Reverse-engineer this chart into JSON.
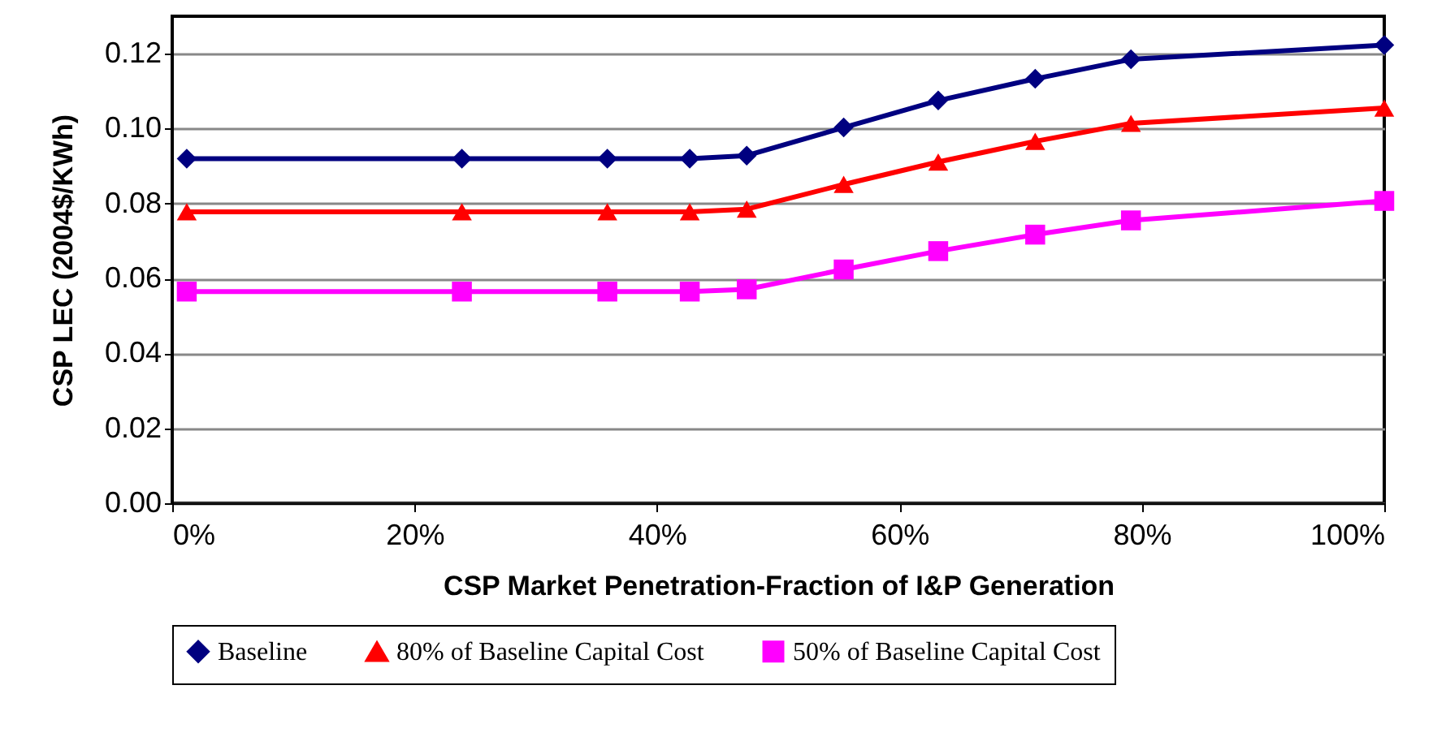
{
  "chart_data": {
    "type": "line",
    "xlabel": "CSP Market Penetration-Fraction of I&P Generation",
    "ylabel": "CSP LEC (2004$/KWh)",
    "x": [
      1.2,
      23.9,
      35.9,
      42.7,
      47.4,
      55.4,
      63.2,
      71.2,
      79.1,
      100
    ],
    "series": [
      {
        "name": "Baseline",
        "color": "#000080",
        "marker": "diamond",
        "values": [
          0.092,
          0.092,
          0.092,
          0.092,
          0.0928,
          0.1003,
          0.1075,
          0.1133,
          0.1185,
          0.1223
        ]
      },
      {
        "name": "80% of Baseline Capital Cost",
        "color": "#ff0000",
        "marker": "triangle",
        "values": [
          0.0778,
          0.0778,
          0.0778,
          0.0778,
          0.0785,
          0.0851,
          0.0911,
          0.0966,
          0.1014,
          0.1055
        ]
      },
      {
        "name": "50% of Baseline Capital Cost",
        "color": "#ff00ff",
        "marker": "square",
        "values": [
          0.0565,
          0.0565,
          0.0565,
          0.0565,
          0.0571,
          0.0624,
          0.0673,
          0.0717,
          0.0755,
          0.0807
        ]
      }
    ],
    "xlim": [
      0,
      100
    ],
    "xticks": [
      {
        "value": 0,
        "label": "0%"
      },
      {
        "value": 20,
        "label": "20%"
      },
      {
        "value": 40,
        "label": "40%"
      },
      {
        "value": 60,
        "label": "60%"
      },
      {
        "value": 80,
        "label": "80%"
      },
      {
        "value": 100,
        "label": "100%"
      }
    ],
    "ylim": [
      0,
      0.13
    ],
    "yticks": [
      {
        "value": 0,
        "label": "0.00"
      },
      {
        "value": 0.02,
        "label": "0.02"
      },
      {
        "value": 0.04,
        "label": "0.04"
      },
      {
        "value": 0.06,
        "label": "0.06"
      },
      {
        "value": 0.08,
        "label": "0.08"
      },
      {
        "value": 0.1,
        "label": "0.10"
      },
      {
        "value": 0.12,
        "label": "0.12"
      }
    ],
    "grid": "y",
    "legend": "bottom",
    "line_style": "solid"
  }
}
